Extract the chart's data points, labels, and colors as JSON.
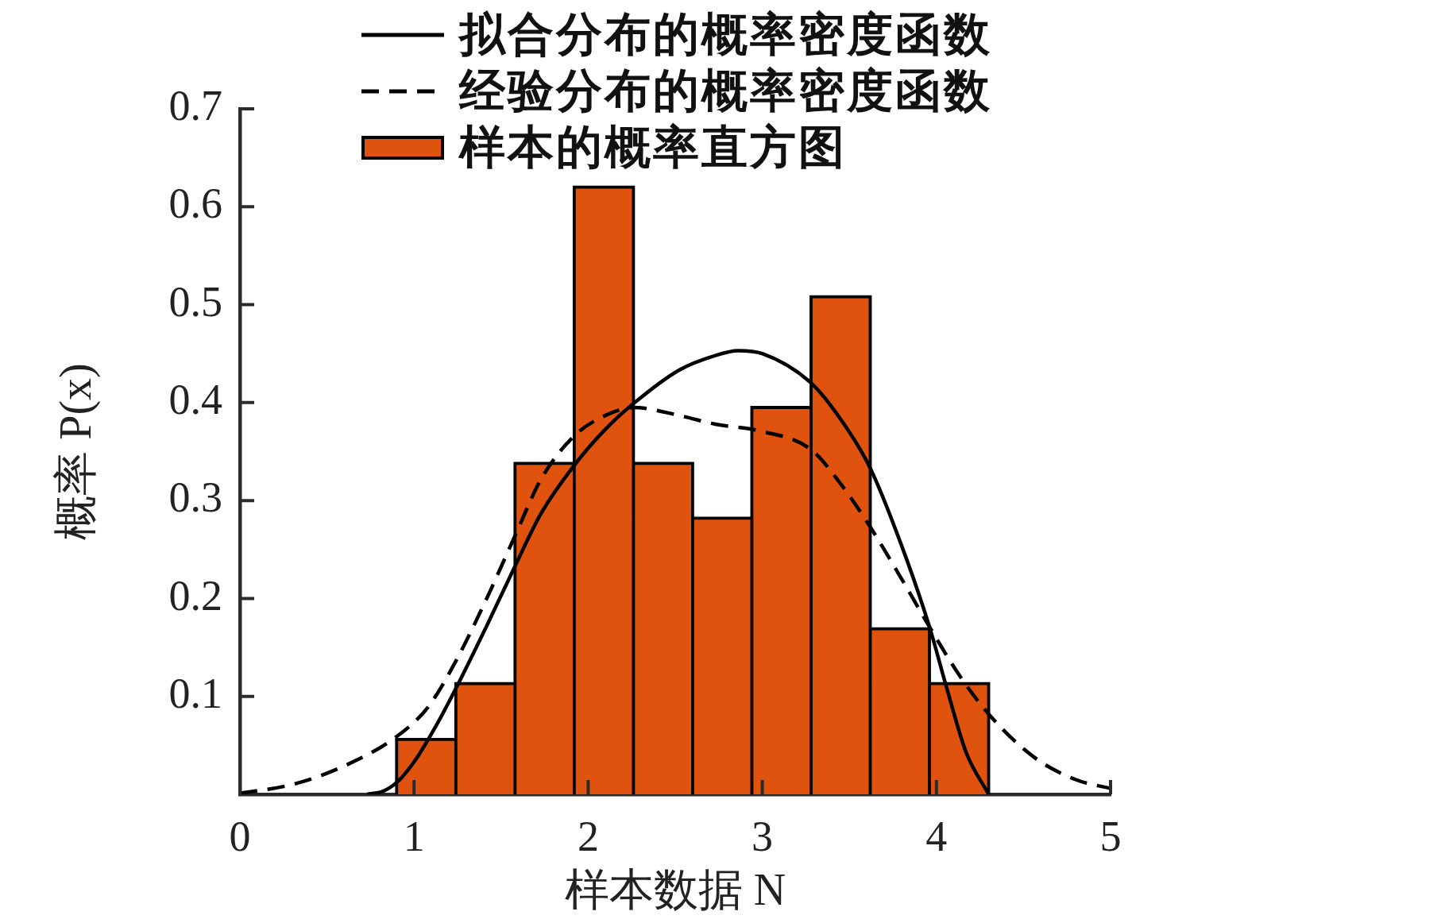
{
  "chart_data": {
    "type": "histogram",
    "xlabel": "样本数据 N",
    "ylabel": "概率 P(x)",
    "bins": [
      0.9,
      1.24,
      1.58,
      1.92,
      2.26,
      2.6,
      2.94,
      3.28,
      3.62,
      3.96,
      4.3
    ],
    "series": [
      {
        "name": "拟合分布的概率密度函数",
        "type": "line",
        "color": "#000000",
        "line_style": "solid",
        "x": [
          0.73,
          0.82,
          0.9,
          1.0,
          1.13,
          1.24,
          1.42,
          1.58,
          1.73,
          1.92,
          2.1,
          2.26,
          2.52,
          2.73,
          2.86,
          3.0,
          3.28,
          3.45,
          3.62,
          3.8,
          3.96,
          4.06,
          4.17,
          4.3
        ],
        "values": [
          0,
          0.003,
          0.012,
          0.033,
          0.071,
          0.108,
          0.173,
          0.233,
          0.287,
          0.336,
          0.373,
          0.399,
          0.433,
          0.448,
          0.453,
          0.45,
          0.42,
          0.383,
          0.333,
          0.254,
          0.171,
          0.108,
          0.043,
          0
        ]
      },
      {
        "name": "经验分布的概率密度函数",
        "type": "line",
        "color": "#000000",
        "line_style": "dashed",
        "x": [
          0,
          0.3,
          0.6,
          0.9,
          1.08,
          1.24,
          1.42,
          1.58,
          1.73,
          1.92,
          2.1,
          2.26,
          2.52,
          2.73,
          2.99,
          3.28,
          3.45,
          3.62,
          3.8,
          3.96,
          4.13,
          4.3,
          4.56,
          4.8,
          5.0
        ],
        "values": [
          0.001,
          0.01,
          0.029,
          0.059,
          0.089,
          0.136,
          0.201,
          0.264,
          0.322,
          0.366,
          0.387,
          0.395,
          0.387,
          0.378,
          0.371,
          0.352,
          0.317,
          0.273,
          0.22,
          0.171,
          0.122,
          0.082,
          0.038,
          0.015,
          0.006
        ]
      },
      {
        "name": "样本的概率直方图",
        "color": "#e0530f",
        "values": [
          0.056,
          0.113,
          0.338,
          0.62,
          0.338,
          0.282,
          0.395,
          0.508,
          0.169,
          0.113
        ]
      }
    ],
    "xlim": [
      0,
      5
    ],
    "xticks": [
      0,
      1,
      2,
      3,
      4,
      5
    ],
    "ylim": [
      0,
      0.7
    ],
    "yticks": [
      0.1,
      0.2,
      0.3,
      0.4,
      0.5,
      0.6,
      0.7
    ],
    "grid": false,
    "legend": "top",
    "marker": "none"
  }
}
